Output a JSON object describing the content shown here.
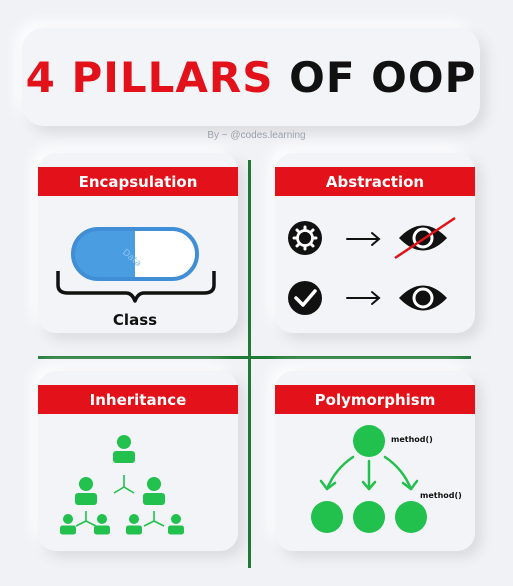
{
  "title": {
    "part1": "4 PILLARS",
    "part2": "OF OOP"
  },
  "byline": "By ~ @codes.learning",
  "pillars": [
    {
      "label": "Encapsulation",
      "caption": "Class",
      "capsule_text": "Data"
    },
    {
      "label": "Abstraction"
    },
    {
      "label": "Inheritance"
    },
    {
      "label": "Polymorphism",
      "method_labels": [
        "method()",
        "method()"
      ]
    }
  ],
  "colors": {
    "red": "#e3121a",
    "green": "#22c04c",
    "divider_green": "#1f7a36",
    "capsule_blue": "#4a9de0",
    "background": "#f1f2f6"
  }
}
